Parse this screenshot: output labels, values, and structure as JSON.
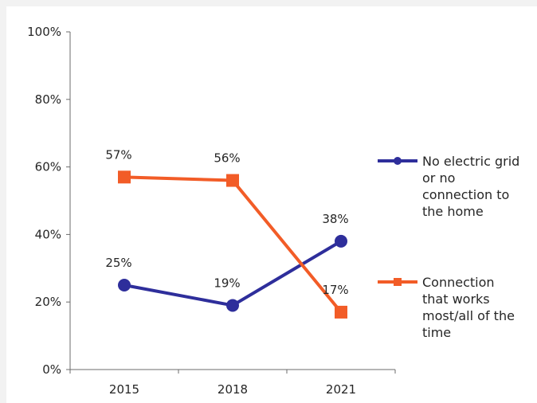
{
  "chart_data": {
    "type": "line",
    "categories": [
      "2015",
      "2018",
      "2021"
    ],
    "ylim": [
      0,
      100
    ],
    "yticks": [
      "0%",
      "20%",
      "40%",
      "60%",
      "80%",
      "100%"
    ],
    "series": [
      {
        "name": "No electric grid or no connection to the home",
        "legend_lines": [
          "No electric grid",
          "or no",
          "connection to",
          "the home"
        ],
        "values": [
          25,
          19,
          38
        ],
        "labels": [
          "25%",
          "19%",
          "38%"
        ],
        "color": "#2e2e9b",
        "marker": "circle"
      },
      {
        "name": "Connection that works most/all of the time",
        "legend_lines": [
          "Connection",
          "that works",
          "most/all of the",
          "time"
        ],
        "values": [
          57,
          56,
          17
        ],
        "labels": [
          "57%",
          "56%",
          "17%"
        ],
        "color": "#f25c27",
        "marker": "square"
      }
    ],
    "grid": false,
    "legend_position": "right"
  }
}
